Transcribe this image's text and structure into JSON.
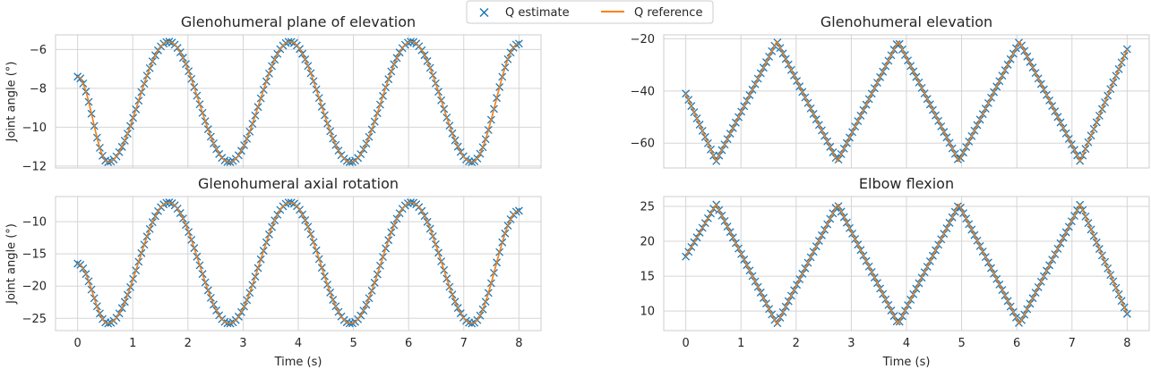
{
  "legend": {
    "items": [
      {
        "label": "Q estimate",
        "marker": "x",
        "color": "#1f77b4"
      },
      {
        "label": "Q reference",
        "marker": "line",
        "color": "#ff7f0e"
      }
    ]
  },
  "colors": {
    "estimate": "#1f77b4",
    "reference": "#ff7f0e",
    "grid": "#d5d5d5",
    "spine": "#cccccc"
  },
  "chart_data": [
    {
      "type": "line",
      "title": "Glenohumeral plane of elevation",
      "xlabel": "",
      "ylabel": "Joint angle (°)",
      "xlim": [
        -0.4,
        8.4
      ],
      "ylim": [
        -12.1,
        -5.25
      ],
      "xticks": [
        0,
        1,
        2,
        3,
        4,
        5,
        6,
        7,
        8
      ],
      "yticks": [
        -12,
        -10,
        -8,
        -6
      ],
      "show_xticklabels": false,
      "grid": true,
      "series": [
        {
          "name": "Q reference",
          "style": "line",
          "x": [
            0,
            0.55,
            1.65,
            2.75,
            3.85,
            4.95,
            6.05,
            7.15,
            8
          ],
          "y": [
            -7.4,
            -11.8,
            -5.6,
            -11.8,
            -5.6,
            -11.8,
            -5.6,
            -11.8,
            -5.7
          ],
          "shape": "cosine"
        },
        {
          "name": "Q estimate",
          "style": "markers",
          "marker": "x",
          "n_points": 160,
          "follows": "Q reference"
        }
      ]
    },
    {
      "type": "line",
      "title": "Glenohumeral elevation",
      "xlabel": "",
      "ylabel": "",
      "xlim": [
        -0.4,
        8.4
      ],
      "ylim": [
        -69.5,
        -18.5
      ],
      "xticks": [
        0,
        1,
        2,
        3,
        4,
        5,
        6,
        7,
        8
      ],
      "yticks": [
        -60,
        -40,
        -20
      ],
      "show_xticklabels": false,
      "grid": true,
      "series": [
        {
          "name": "Q reference",
          "style": "line",
          "x": [
            0,
            0.55,
            1.65,
            2.75,
            3.85,
            4.95,
            6.05,
            7.15,
            8
          ],
          "y": [
            -41,
            -67,
            -21,
            -67,
            -21,
            -67,
            -21,
            -67,
            -24
          ],
          "shape": "linear"
        },
        {
          "name": "Q estimate",
          "style": "markers",
          "marker": "x",
          "n_points": 160,
          "follows": "Q reference"
        }
      ]
    },
    {
      "type": "line",
      "title": "Glenohumeral axial rotation",
      "xlabel": "Time (s)",
      "ylabel": "Joint angle (°)",
      "xlim": [
        -0.4,
        8.4
      ],
      "ylim": [
        -26.9,
        -6.1
      ],
      "xticks": [
        0,
        1,
        2,
        3,
        4,
        5,
        6,
        7,
        8
      ],
      "yticks": [
        -25,
        -20,
        -15,
        -10
      ],
      "show_xticklabels": true,
      "grid": true,
      "series": [
        {
          "name": "Q reference",
          "style": "line",
          "x": [
            0,
            0.55,
            1.65,
            2.75,
            3.85,
            4.95,
            6.05,
            7.15,
            8
          ],
          "y": [
            -16.5,
            -25.8,
            -7.0,
            -25.8,
            -7.0,
            -25.8,
            -7.0,
            -25.8,
            -8.3
          ],
          "shape": "cosine"
        },
        {
          "name": "Q estimate",
          "style": "markers",
          "marker": "x",
          "n_points": 160,
          "follows": "Q reference"
        }
      ]
    },
    {
      "type": "line",
      "title": "Elbow flexion",
      "xlabel": "Time (s)",
      "ylabel": "",
      "xlim": [
        -0.4,
        8.4
      ],
      "ylim": [
        7.2,
        26.4
      ],
      "xticks": [
        0,
        1,
        2,
        3,
        4,
        5,
        6,
        7,
        8
      ],
      "yticks": [
        10,
        15,
        20,
        25
      ],
      "show_xticklabels": true,
      "grid": true,
      "series": [
        {
          "name": "Q reference",
          "style": "line",
          "x": [
            0,
            0.55,
            1.65,
            2.75,
            3.85,
            4.95,
            6.05,
            7.15,
            8
          ],
          "y": [
            17.8,
            25.3,
            8.1,
            25.3,
            8.1,
            25.3,
            8.1,
            25.3,
            9.6
          ],
          "shape": "linear"
        },
        {
          "name": "Q estimate",
          "style": "markers",
          "marker": "x",
          "n_points": 160,
          "follows": "Q reference"
        }
      ]
    }
  ]
}
